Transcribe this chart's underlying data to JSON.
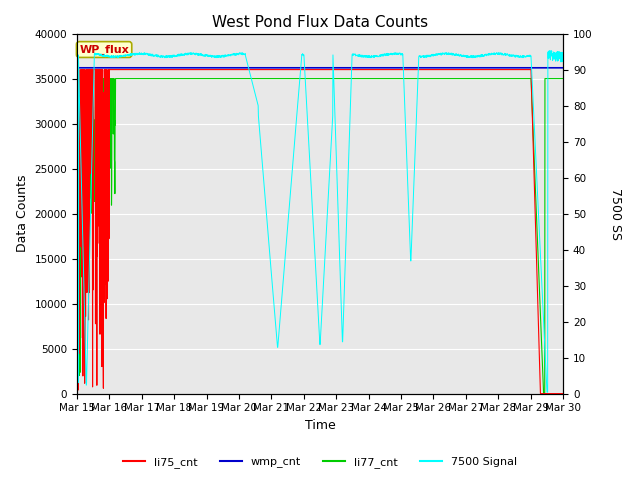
{
  "title": "West Pond Flux Data Counts",
  "xlabel": "Time",
  "ylabel_left": "Data Counts",
  "ylabel_right": "7500 SS",
  "ylim_left": [
    0,
    40000
  ],
  "ylim_right": [
    0,
    100
  ],
  "x_tick_labels": [
    "Mar 15",
    "Mar 16",
    "Mar 17",
    "Mar 18",
    "Mar 19",
    "Mar 20",
    "Mar 21",
    "Mar 22",
    "Mar 23",
    "Mar 24",
    "Mar 25",
    "Mar 26",
    "Mar 27",
    "Mar 28",
    "Mar 29",
    "Mar 30"
  ],
  "legend_label_box": "WP_flux",
  "legend_entries": [
    "li75_cnt",
    "wmp_cnt",
    "li77_cnt",
    "7500 Signal"
  ],
  "legend_colors": [
    "#ff0000",
    "#0000ee",
    "#00dd00",
    "#00ccff"
  ],
  "background_color": "#e8e8e8",
  "title_fontsize": 11,
  "tick_fontsize": 7.5,
  "axis_label_fontsize": 9,
  "figsize": [
    6.4,
    4.8
  ],
  "dpi": 100
}
